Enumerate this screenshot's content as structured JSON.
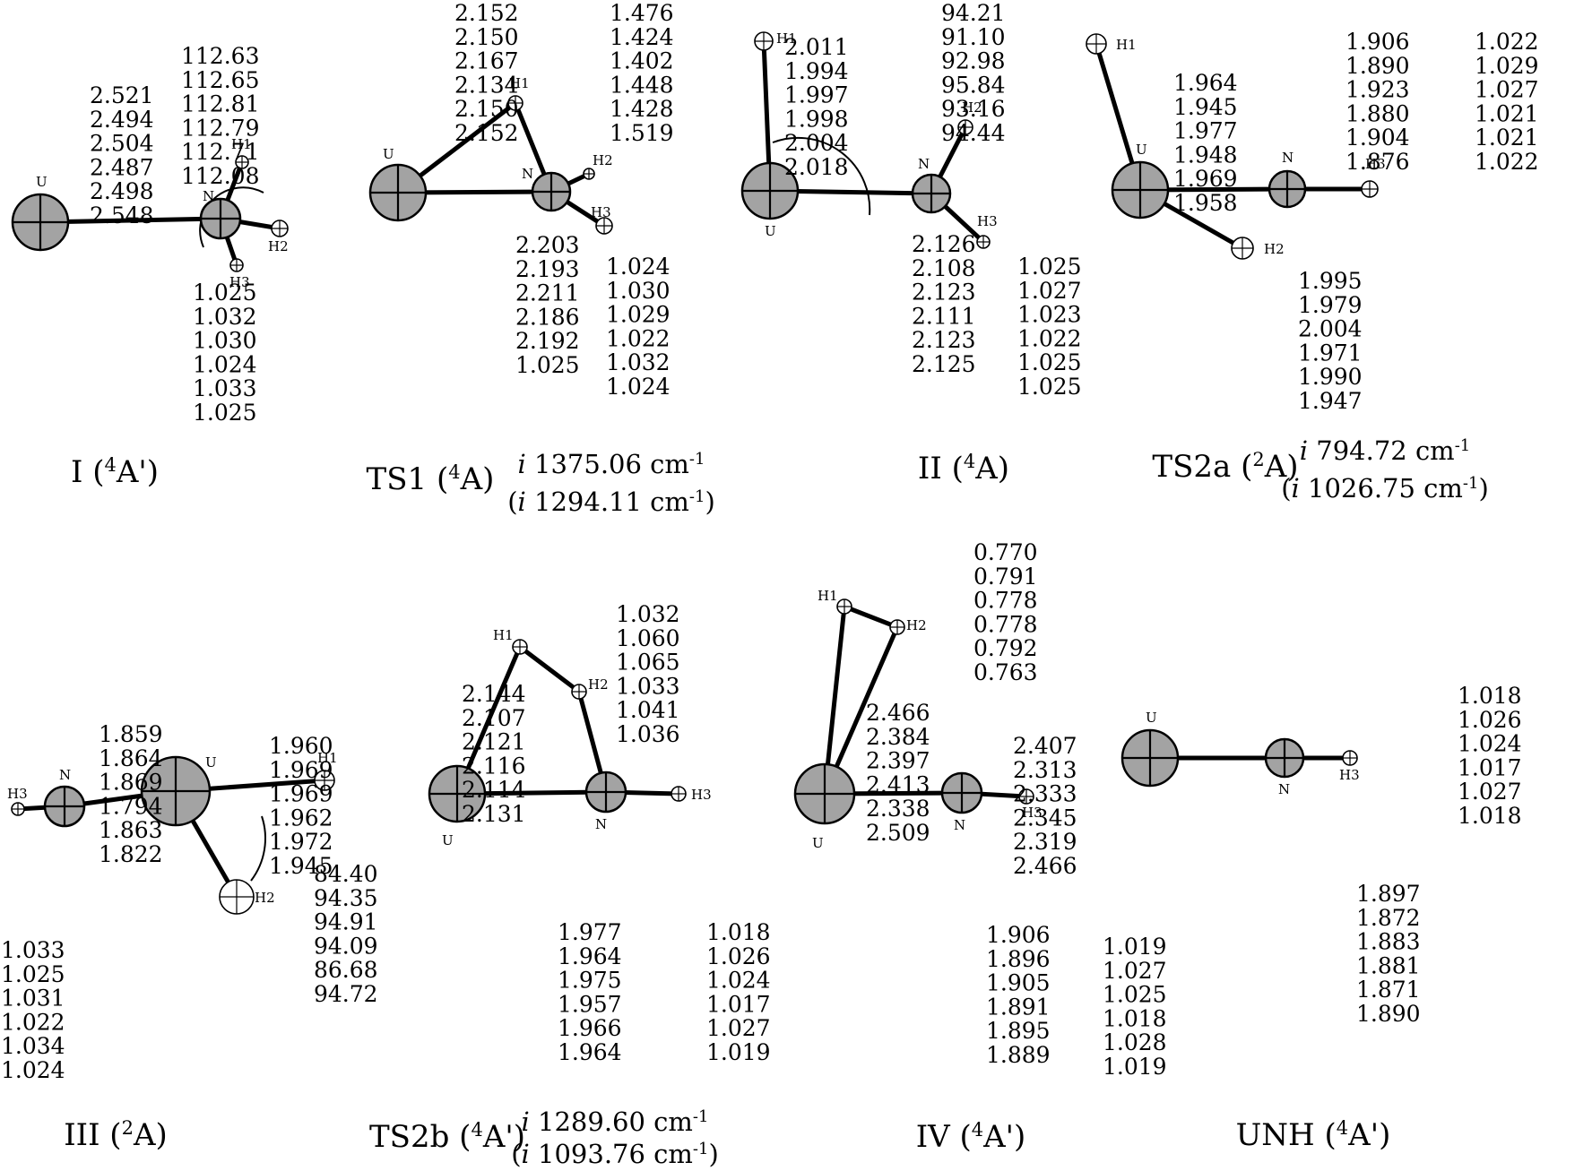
{
  "structures": [
    {
      "id": "I",
      "caption": {
        "main": "I (",
        "sup": "4",
        "rest": "A')"
      },
      "freq": [],
      "atom_labels": {
        "U": "U",
        "N": "N",
        "H1": "H1",
        "H2": "H2",
        "H3": "H3"
      },
      "columns": [
        [
          "2.521",
          "2.494",
          "2.504",
          "2.487",
          "2.498",
          "2.548"
        ],
        [
          "112.63",
          "112.65",
          "112.81",
          "112.79",
          "112.71",
          "112.08"
        ],
        [
          "1.025",
          "1.032",
          "1.030",
          "1.024",
          "1.033",
          "1.025"
        ]
      ]
    },
    {
      "id": "TS1",
      "caption": {
        "main": "TS1 (",
        "sup": "4",
        "rest": "A)"
      },
      "freq": [
        {
          "pre": "",
          "i": "i",
          "val": " 1375.06 cm",
          "sup": "-1",
          "post": ""
        },
        {
          "pre": "(",
          "i": "i",
          "val": " 1294.11 cm",
          "sup": "-1",
          "post": ")"
        }
      ],
      "atom_labels": {
        "U": "U",
        "N": "N",
        "H1": "H1",
        "H2": "H2",
        "H3": "H3"
      },
      "columns": [
        [
          "2.152",
          "2.150",
          "2.167",
          "2.134",
          "2.150",
          "2.152"
        ],
        [
          "1.476",
          "1.424",
          "1.402",
          "1.448",
          "1.428",
          "1.519"
        ],
        [
          "2.203",
          "2.193",
          "2.211",
          "2.186",
          "2.192",
          "1.025"
        ],
        [
          "1.024",
          "1.030",
          "1.029",
          "1.022",
          "1.032",
          "1.024"
        ]
      ]
    },
    {
      "id": "II",
      "caption": {
        "main": "II (",
        "sup": "4",
        "rest": "A)"
      },
      "freq": [],
      "atom_labels": {
        "U": "U",
        "N": "N",
        "H1": "H1",
        "H2": "H2",
        "H3": "H3"
      },
      "columns": [
        [
          "2.011",
          "1.994",
          "1.997",
          "1.998",
          "2.004",
          "2.018"
        ],
        [
          "94.21",
          "91.10",
          "92.98",
          "95.84",
          "93.16",
          "94.44"
        ],
        [
          "2.126",
          "2.108",
          "2.123",
          "2.111",
          "2.123",
          "2.125"
        ],
        [
          "1.025",
          "1.027",
          "1.023",
          "1.022",
          "1.025",
          "1.025"
        ]
      ]
    },
    {
      "id": "TS2a",
      "caption": {
        "main": "TS2a (",
        "sup": "2",
        "rest": "A)"
      },
      "freq": [
        {
          "pre": "",
          "i": "i",
          "val": " 794.72 cm",
          "sup": "-1",
          "post": ""
        },
        {
          "pre": "(",
          "i": "i",
          "val": " 1026.75 cm",
          "sup": "-1",
          "post": ")"
        }
      ],
      "atom_labels": {
        "U": "U",
        "N": "N",
        "H1": "H1",
        "H2": "H2",
        "H3": "H3"
      },
      "columns": [
        [
          "1.964",
          "1.945",
          "1.977",
          "1.948",
          "1.969",
          "1.958"
        ],
        [
          "1.906",
          "1.890",
          "1.923",
          "1.880",
          "1.904",
          "1.876"
        ],
        [
          "1.022",
          "1.029",
          "1.027",
          "1.021",
          "1.021",
          "1.022"
        ],
        [
          "1.995",
          "1.979",
          "2.004",
          "1.971",
          "1.990",
          "1.947"
        ]
      ]
    },
    {
      "id": "III",
      "caption": {
        "main": "III (",
        "sup": "2",
        "rest": "A)"
      },
      "freq": [],
      "atom_labels": {
        "U": "U",
        "N": "N",
        "H1": "H1",
        "H2": "H2",
        "H3": "H3"
      },
      "columns": [
        [
          "1.859",
          "1.864",
          "1.869",
          "1.794",
          "1.863",
          "1.822"
        ],
        [
          "1.960",
          "1.969",
          "1.969",
          "1.962",
          "1.972",
          "1.945"
        ],
        [
          "1.033",
          "1.025",
          "1.031",
          "1.022",
          "1.034",
          "1.024"
        ],
        [
          "84.40",
          "94.35",
          "94.91",
          "94.09",
          "86.68",
          "94.72"
        ]
      ]
    },
    {
      "id": "TS2b",
      "caption": {
        "main": "TS2b (",
        "sup": "4",
        "rest": "A')"
      },
      "freq": [
        {
          "pre": "",
          "i": "i",
          "val": " 1289.60 cm",
          "sup": "-1",
          "post": ""
        },
        {
          "pre": "(",
          "i": "i",
          "val": " 1093.76 cm",
          "sup": "-1",
          "post": ")"
        }
      ],
      "atom_labels": {
        "U": "U",
        "N": "N",
        "H1": "H1",
        "H2": "H2",
        "H3": "H3"
      },
      "columns": [
        [
          "2.144",
          "2.107",
          "2.121",
          "2.116",
          "2.114",
          "2.131"
        ],
        [
          "1.032",
          "1.060",
          "1.065",
          "1.033",
          "1.041",
          "1.036"
        ],
        [
          "1.977",
          "1.964",
          "1.975",
          "1.957",
          "1.966",
          "1.964"
        ],
        [
          "1.018",
          "1.026",
          "1.024",
          "1.017",
          "1.027",
          "1.019"
        ]
      ]
    },
    {
      "id": "IV",
      "caption": {
        "main": "IV (",
        "sup": "4",
        "rest": "A')"
      },
      "freq": [],
      "atom_labels": {
        "U": "U",
        "N": "N",
        "H1": "H1",
        "H2": "H2",
        "H3": "H3"
      },
      "columns": [
        [
          "0.770",
          "0.791",
          "0.778",
          "0.778",
          "0.792",
          "0.763"
        ],
        [
          "2.466",
          "2.384",
          "2.397",
          "2.413",
          "2.338",
          "2.509"
        ],
        [
          "2.407",
          "2.313",
          "2.333",
          "2.345",
          "2.319",
          "2.466"
        ],
        [
          "1.906",
          "1.896",
          "1.905",
          "1.891",
          "1.895",
          "1.889"
        ],
        [
          "1.019",
          "1.027",
          "1.025",
          "1.018",
          "1.028",
          "1.019"
        ]
      ]
    },
    {
      "id": "UNH",
      "caption": {
        "main": "UNH (",
        "sup": "4",
        "rest": "A')"
      },
      "freq": [],
      "atom_labels": {
        "U": "U",
        "N": "N",
        "H3": "H3"
      },
      "columns": [
        [
          "1.018",
          "1.026",
          "1.024",
          "1.017",
          "1.027",
          "1.018"
        ],
        [
          "1.897",
          "1.872",
          "1.883",
          "1.881",
          "1.871",
          "1.890"
        ]
      ]
    }
  ]
}
